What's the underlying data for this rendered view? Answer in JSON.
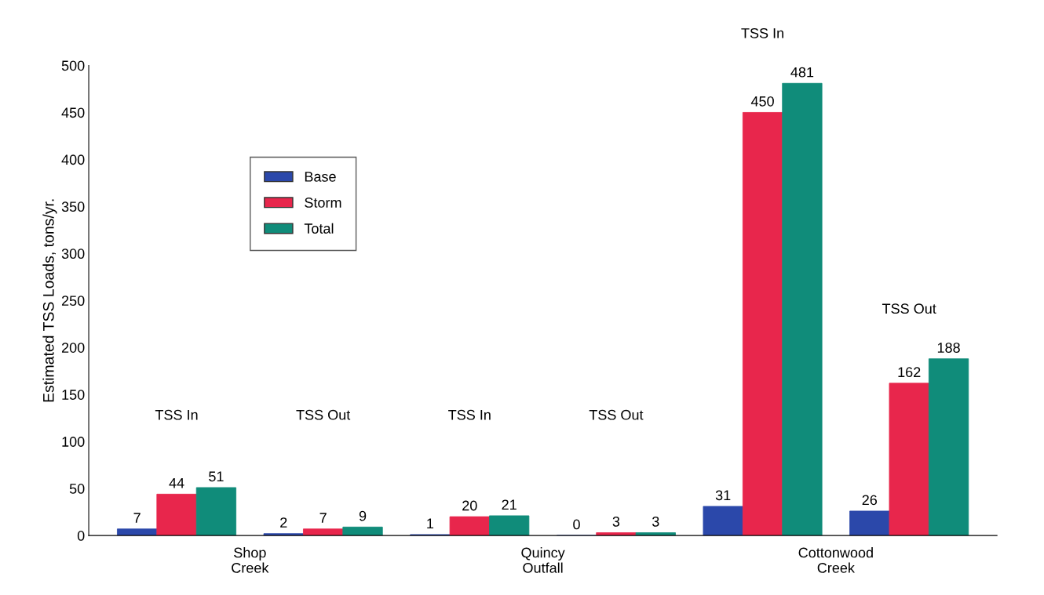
{
  "chart_data": {
    "type": "bar",
    "ylabel": "Estimated TSS Loads, tons/yr.",
    "categories": [
      null,
      null,
      null,
      null,
      null,
      null
    ],
    "series": [
      {
        "name": "Base",
        "color": "#2b48aa",
        "values": [
          7,
          2,
          1,
          0,
          31,
          26
        ]
      },
      {
        "name": "Storm",
        "color": "#e8264c",
        "values": [
          44,
          7,
          20,
          3,
          450,
          162
        ]
      },
      {
        "name": "Total",
        "color": "#108c7a",
        "values": [
          51,
          9,
          21,
          3,
          481,
          188
        ]
      }
    ],
    "annotations": [
      "TSS In",
      "TSS Out",
      "TSS In",
      "TSS Out",
      "TSS In",
      "TSS Out",
      "Shop\nCreek",
      "Quincy\nOutfall",
      "Cottonwood\nCreek"
    ],
    "ylim": [
      0,
      500
    ],
    "yticks": [
      0,
      50,
      100,
      150,
      200,
      250,
      300,
      350,
      400,
      450,
      500
    ],
    "data_labels": true,
    "legend": "top left",
    "grid": false
  }
}
